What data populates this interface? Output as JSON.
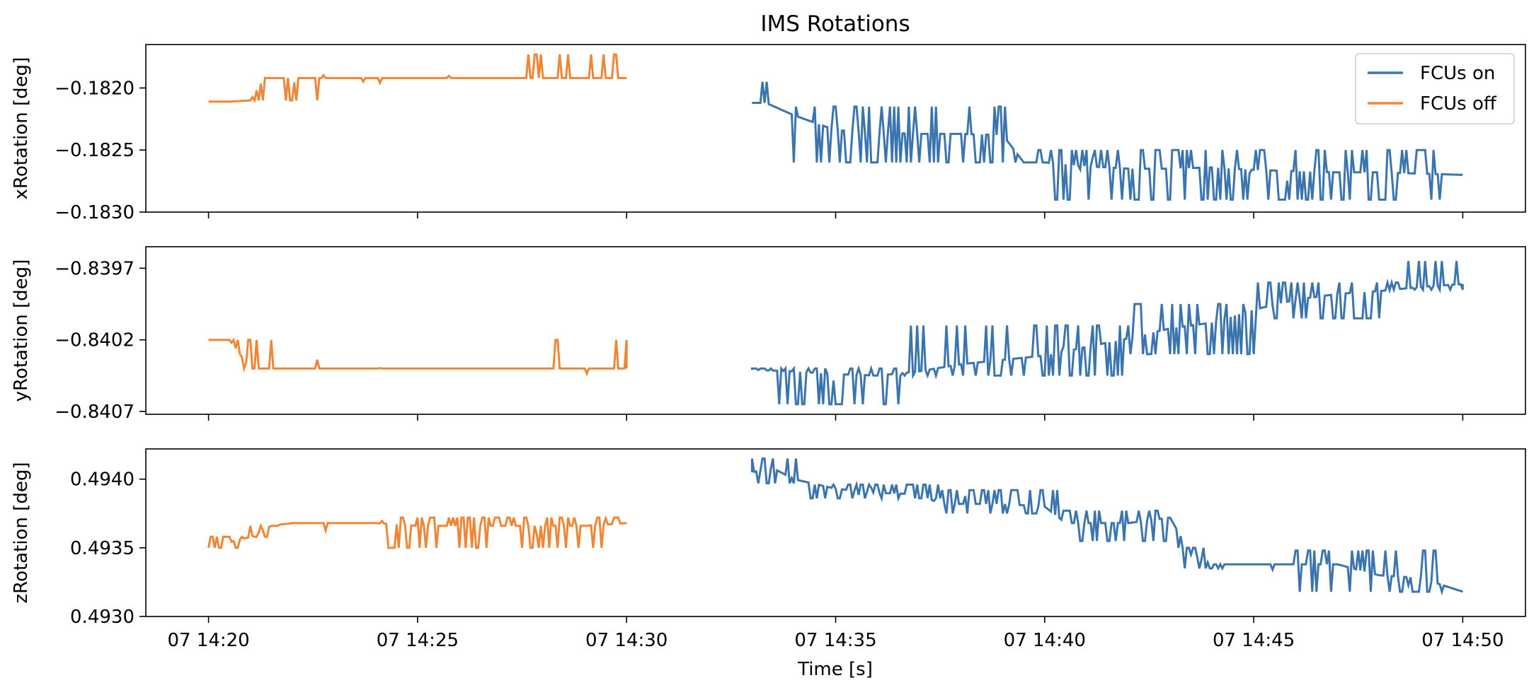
{
  "chart_data": {
    "type": "line",
    "title": "IMS Rotations",
    "xlabel": "Time [s]",
    "x_tick_labels": [
      "07 14:20",
      "07 14:25",
      "07 14:30",
      "07 14:35",
      "07 14:40",
      "07 14:45",
      "07 14:50"
    ],
    "x_range": [
      "14:18:30",
      "14:51:30"
    ],
    "legend": {
      "placement": "top-right",
      "entries": [
        {
          "name": "FCUs on",
          "color": "#3b75af"
        },
        {
          "name": "FCUs off",
          "color": "#ef8636"
        }
      ]
    },
    "colors": {
      "on": "#3b75af",
      "off": "#ef8636"
    },
    "panels": [
      {
        "ylabel": "xRotation [deg]",
        "ylim": [
          -0.183,
          -0.18165
        ],
        "y_ticks": [
          -0.182,
          -0.1825,
          -0.183
        ],
        "y_tick_labels": [
          "−0.1820",
          "−0.1825",
          "−0.1830"
        ],
        "series": [
          {
            "name": "FCUs off",
            "color": "#ef8636",
            "x": [
              "14:20:00",
              "14:20:30",
              "14:21:00",
              "14:21:20",
              "14:22:10",
              "14:23:00",
              "14:24:00",
              "14:25:00",
              "14:26:00",
              "14:27:00",
              "14:27:30",
              "14:28:00",
              "14:29:00",
              "14:30:00"
            ],
            "y": [
              -0.18211,
              -0.18211,
              -0.1821,
              -0.18192,
              -0.18192,
              -0.18192,
              -0.18192,
              -0.18192,
              -0.18192,
              -0.18192,
              -0.18192,
              -0.18192,
              -0.18192,
              -0.18192
            ],
            "noise": {
              "bursts": [
                {
                  "from": "14:21:00",
                  "to": "14:22:10",
                  "lo": -0.1821,
                  "hi": -0.18192
                },
                {
                  "from": "14:22:30",
                  "to": "14:23:10",
                  "lo": -0.1821,
                  "hi": -0.18192
                },
                {
                  "from": "14:27:35",
                  "to": "14:29:50",
                  "lo": -0.18192,
                  "hi": -0.18173
                }
              ]
            }
          },
          {
            "name": "FCUs on",
            "color": "#3b75af",
            "x": [
              "14:33:00",
              "14:33:20",
              "14:34:00",
              "14:35:00",
              "14:36:00",
              "14:37:00",
              "14:38:00",
              "14:39:00",
              "14:39:30",
              "14:40:00",
              "14:41:00",
              "14:42:00",
              "14:43:00",
              "14:44:00",
              "14:45:00",
              "14:46:00",
              "14:47:00",
              "14:48:00",
              "14:49:00",
              "14:50:00"
            ],
            "y": [
              -0.18212,
              -0.18212,
              -0.18222,
              -0.18234,
              -0.18236,
              -0.18237,
              -0.18237,
              -0.18238,
              -0.1826,
              -0.1826,
              -0.18263,
              -0.18265,
              -0.18265,
              -0.18264,
              -0.18266,
              -0.18267,
              -0.18268,
              -0.18268,
              -0.18269,
              -0.1827
            ],
            "noise": {
              "bursts": [
                {
                  "from": "14:33:10",
                  "to": "14:33:25",
                  "lo": -0.18235,
                  "hi": -0.18195
                },
                {
                  "from": "14:34:00",
                  "to": "14:39:20",
                  "lo": -0.1826,
                  "hi": -0.18215
                },
                {
                  "from": "14:39:40",
                  "to": "14:49:40",
                  "lo": -0.1829,
                  "hi": -0.1825
                }
              ]
            }
          }
        ]
      },
      {
        "ylabel": "yRotation [deg]",
        "ylim": [
          -0.84072,
          -0.83955
        ],
        "y_ticks": [
          -0.8397,
          -0.8402,
          -0.8407
        ],
        "y_tick_labels": [
          "−0.8397",
          "−0.8402",
          "−0.8407"
        ],
        "series": [
          {
            "name": "FCUs off",
            "color": "#ef8636",
            "x": [
              "14:20:00",
              "14:20:30",
              "14:21:00",
              "14:22:00",
              "14:25:00",
              "14:28:00",
              "14:29:30",
              "14:30:00"
            ],
            "y": [
              -0.8402,
              -0.8402,
              -0.8404,
              -0.8404,
              -0.8404,
              -0.8404,
              -0.8404,
              -0.8404
            ],
            "noise": {
              "bursts": [
                {
                  "from": "14:20:30",
                  "to": "14:21:30",
                  "lo": -0.8404,
                  "hi": -0.8402
                },
                {
                  "from": "14:28:10",
                  "to": "14:28:50",
                  "lo": -0.8404,
                  "hi": -0.8402
                },
                {
                  "from": "14:29:40",
                  "to": "14:30:00",
                  "lo": -0.8404,
                  "hi": -0.8402
                }
              ]
            }
          },
          {
            "name": "FCUs on",
            "color": "#3b75af",
            "x": [
              "14:33:00",
              "14:34:00",
              "14:35:00",
              "14:36:00",
              "14:37:00",
              "14:38:00",
              "14:39:00",
              "14:40:00",
              "14:41:00",
              "14:42:00",
              "14:43:00",
              "14:44:00",
              "14:45:00",
              "14:46:00",
              "14:47:00",
              "14:48:00",
              "14:49:00",
              "14:50:00"
            ],
            "y": [
              -0.84041,
              -0.84042,
              -0.84044,
              -0.84045,
              -0.84042,
              -0.84037,
              -0.84034,
              -0.84031,
              -0.84025,
              -0.84019,
              -0.84012,
              -0.84008,
              -0.83999,
              -0.83992,
              -0.83988,
              -0.83986,
              -0.83983,
              -0.83981
            ],
            "noise": {
              "bursts": [
                {
                  "from": "14:33:00",
                  "to": "14:36:30",
                  "lo": -0.84065,
                  "hi": -0.8404
                },
                {
                  "from": "14:36:30",
                  "to": "14:42:00",
                  "lo": -0.84045,
                  "hi": -0.8401
                },
                {
                  "from": "14:42:00",
                  "to": "14:45:00",
                  "lo": -0.8403,
                  "hi": -0.83995
                },
                {
                  "from": "14:45:00",
                  "to": "14:48:30",
                  "lo": -0.84005,
                  "hi": -0.8398
                },
                {
                  "from": "14:48:30",
                  "to": "14:50:00",
                  "lo": -0.83985,
                  "hi": -0.83965
                }
              ]
            }
          }
        ]
      },
      {
        "ylabel": "zRotation [deg]",
        "ylim": [
          0.493,
          0.49422
        ],
        "y_ticks": [
          0.494,
          0.4935,
          0.493
        ],
        "y_tick_labels": [
          "0.4940",
          "0.4935",
          "0.4930"
        ],
        "series": [
          {
            "name": "FCUs off",
            "color": "#ef8636",
            "x": [
              "14:20:00",
              "14:21:00",
              "14:21:30",
              "14:22:00",
              "14:23:00",
              "14:24:00",
              "14:25:00",
              "14:26:00",
              "14:27:00",
              "14:28:00",
              "14:29:00",
              "14:30:00"
            ],
            "y": [
              0.4935,
              0.49358,
              0.49366,
              0.49368,
              0.49368,
              0.49368,
              0.49366,
              0.49366,
              0.49366,
              0.49366,
              0.49366,
              0.49368
            ],
            "noise": {
              "bursts": [
                {
                  "from": "14:20:00",
                  "to": "14:20:50",
                  "lo": 0.4935,
                  "hi": 0.49358
                },
                {
                  "from": "14:21:00",
                  "to": "14:21:40",
                  "lo": 0.49358,
                  "hi": 0.49366
                },
                {
                  "from": "14:24:10",
                  "to": "14:29:50",
                  "lo": 0.4935,
                  "hi": 0.49372
                }
              ]
            }
          },
          {
            "name": "FCUs on",
            "color": "#3b75af",
            "x": [
              "14:33:00",
              "14:33:30",
              "14:34:00",
              "14:35:00",
              "14:36:00",
              "14:37:00",
              "14:37:30",
              "14:38:00",
              "14:39:00",
              "14:40:00",
              "14:40:30",
              "14:41:00",
              "14:42:00",
              "14:43:00",
              "14:43:30",
              "14:44:00",
              "14:45:00",
              "14:46:00",
              "14:47:00",
              "14:48:00",
              "14:49:00",
              "14:50:00"
            ],
            "y": [
              0.49405,
              0.49408,
              0.494,
              0.49393,
              0.4939,
              0.49389,
              0.49382,
              0.49382,
              0.49382,
              0.4938,
              0.49368,
              0.49368,
              0.49368,
              0.49372,
              0.49345,
              0.49338,
              0.49338,
              0.49338,
              0.49338,
              0.4933,
              0.49328,
              0.49318
            ],
            "noise": {
              "bursts": [
                {
                  "from": "14:33:00",
                  "to": "14:34:20",
                  "lo": 0.49397,
                  "hi": 0.49415
                },
                {
                  "from": "14:34:20",
                  "to": "14:37:30",
                  "lo": 0.49386,
                  "hi": 0.49396
                },
                {
                  "from": "14:37:30",
                  "to": "14:40:20",
                  "lo": 0.49375,
                  "hi": 0.49392
                },
                {
                  "from": "14:40:20",
                  "to": "14:43:10",
                  "lo": 0.49355,
                  "hi": 0.49377
                },
                {
                  "from": "14:43:10",
                  "to": "14:44:20",
                  "lo": 0.49335,
                  "hi": 0.4935
                },
                {
                  "from": "14:46:00",
                  "to": "14:49:30",
                  "lo": 0.49318,
                  "hi": 0.49348
                }
              ]
            }
          }
        ]
      }
    ]
  }
}
